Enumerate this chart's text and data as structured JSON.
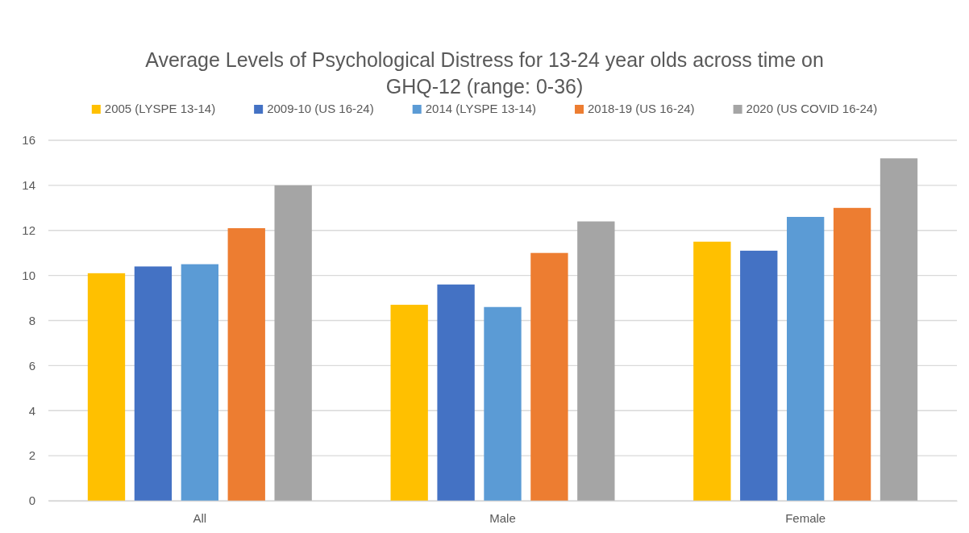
{
  "chart_data": {
    "type": "bar",
    "title": "Average Levels of Psychological Distress for 13-24 year olds across time on GHQ-12 (range: 0-36)",
    "categories": [
      "All",
      "Male",
      "Female"
    ],
    "series": [
      {
        "name": "2005 (LYSPE 13-14)",
        "color": "#ffc000",
        "values": [
          10.1,
          8.7,
          11.5
        ]
      },
      {
        "name": "2009-10 (US 16-24)",
        "color": "#4472c4",
        "values": [
          10.4,
          9.6,
          11.1
        ]
      },
      {
        "name": "2014 (LYSPE 13-14)",
        "color": "#5b9bd5",
        "values": [
          10.5,
          8.6,
          12.6
        ]
      },
      {
        "name": "2018-19 (US 16-24)",
        "color": "#ed7d31",
        "values": [
          12.1,
          11.0,
          13.0
        ]
      },
      {
        "name": "2020 (US COVID 16-24)",
        "color": "#a5a5a5",
        "values": [
          14.0,
          12.4,
          15.2
        ]
      }
    ],
    "ylim": [
      0,
      16
    ],
    "yticks": [
      0,
      2,
      4,
      6,
      8,
      10,
      12,
      14,
      16
    ],
    "grid": "y",
    "legend": "top"
  }
}
